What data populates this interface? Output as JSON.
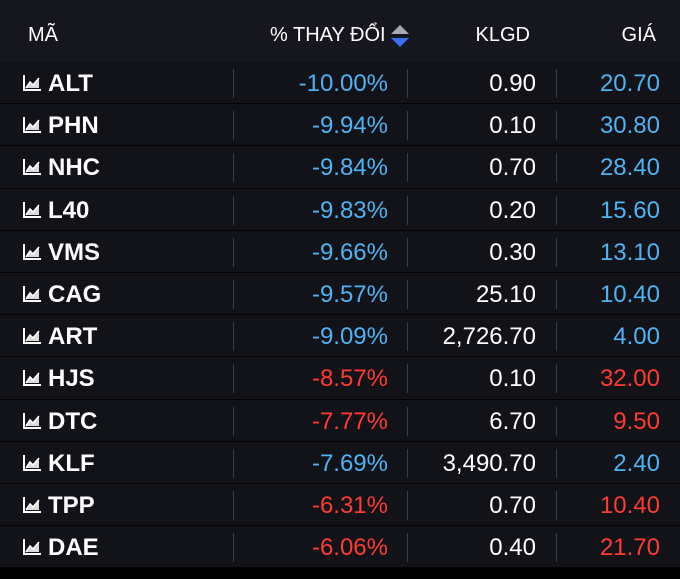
{
  "header": {
    "symbol": "MÃ",
    "change": "% THAY ĐỔI",
    "volume": "KLGD",
    "price": "GIÁ",
    "sort_icon": "sort-up-down-icon"
  },
  "row_icon": "line-chart-icon",
  "colors": {
    "floor": "#4fb3f3",
    "down": "#ff3b30",
    "text": "#ffffff",
    "header_bg": "#16161f",
    "row_bg": "#121219"
  },
  "rows": [
    {
      "symbol": "ALT",
      "change": "-10.00%",
      "volume": "0.90",
      "price": "20.70",
      "status": "floor"
    },
    {
      "symbol": "PHN",
      "change": "-9.94%",
      "volume": "0.10",
      "price": "30.80",
      "status": "floor"
    },
    {
      "symbol": "NHC",
      "change": "-9.84%",
      "volume": "0.70",
      "price": "28.40",
      "status": "floor"
    },
    {
      "symbol": "L40",
      "change": "-9.83%",
      "volume": "0.20",
      "price": "15.60",
      "status": "floor"
    },
    {
      "symbol": "VMS",
      "change": "-9.66%",
      "volume": "0.30",
      "price": "13.10",
      "status": "floor"
    },
    {
      "symbol": "CAG",
      "change": "-9.57%",
      "volume": "25.10",
      "price": "10.40",
      "status": "floor"
    },
    {
      "symbol": "ART",
      "change": "-9.09%",
      "volume": "2,726.70",
      "price": "4.00",
      "status": "floor"
    },
    {
      "symbol": "HJS",
      "change": "-8.57%",
      "volume": "0.10",
      "price": "32.00",
      "status": "down"
    },
    {
      "symbol": "DTC",
      "change": "-7.77%",
      "volume": "6.70",
      "price": "9.50",
      "status": "down"
    },
    {
      "symbol": "KLF",
      "change": "-7.69%",
      "volume": "3,490.70",
      "price": "2.40",
      "status": "floor"
    },
    {
      "symbol": "TPP",
      "change": "-6.31%",
      "volume": "0.70",
      "price": "10.40",
      "status": "down"
    },
    {
      "symbol": "DAE",
      "change": "-6.06%",
      "volume": "0.40",
      "price": "21.70",
      "status": "down"
    }
  ]
}
